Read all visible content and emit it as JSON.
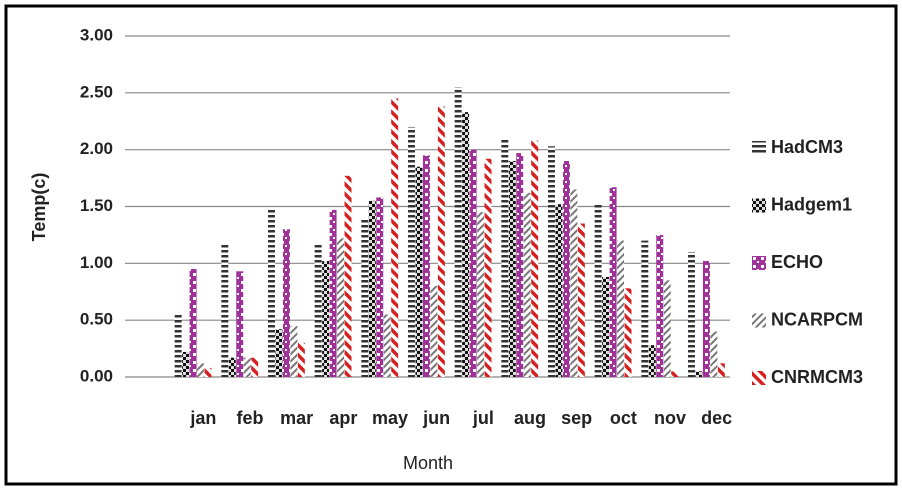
{
  "chart_data": {
    "type": "bar",
    "y_label": "Temp(c)",
    "x_label": "Month",
    "categories": [
      "jan",
      "feb",
      "mar",
      "apr",
      "may",
      "jun",
      "jul",
      "aug",
      "sep",
      "oct",
      "nov",
      "dec"
    ],
    "series": [
      {
        "name": "HadCM3",
        "color": "#333333",
        "values": [
          0.55,
          1.17,
          1.48,
          1.17,
          1.4,
          2.2,
          2.55,
          2.1,
          2.03,
          1.53,
          1.2,
          1.1
        ]
      },
      {
        "name": "Hadgem1",
        "color": "#111111",
        "values": [
          0.22,
          0.17,
          0.42,
          1.02,
          1.55,
          1.85,
          2.33,
          1.9,
          1.52,
          0.88,
          0.28,
          0.05
        ]
      },
      {
        "name": "ECHO",
        "color": "#a0309a",
        "values": [
          0.95,
          0.93,
          1.3,
          1.47,
          1.58,
          1.95,
          2.0,
          1.97,
          1.9,
          1.67,
          1.25,
          1.02
        ]
      },
      {
        "name": "NCARPCM",
        "color": "#777777",
        "values": [
          0.12,
          0.17,
          0.45,
          1.22,
          0.55,
          0.8,
          1.45,
          1.62,
          1.65,
          1.2,
          0.85,
          0.4
        ]
      },
      {
        "name": "CNRMCM3",
        "color": "#d42020",
        "values": [
          0.08,
          0.17,
          0.3,
          1.77,
          2.45,
          2.38,
          1.92,
          2.08,
          1.35,
          0.78,
          0.05,
          0.12
        ]
      }
    ],
    "ylim": [
      0,
      3
    ],
    "yticks": [
      {
        "value": 0,
        "label": "0.00"
      },
      {
        "value": 0.5,
        "label": "0.50"
      },
      {
        "value": 1,
        "label": "1.00"
      },
      {
        "value": 1.5,
        "label": "1.50"
      },
      {
        "value": 2,
        "label": "2.00"
      },
      {
        "value": 2.5,
        "label": "2.50"
      },
      {
        "value": 3,
        "label": "3.00"
      }
    ],
    "grid": true
  }
}
